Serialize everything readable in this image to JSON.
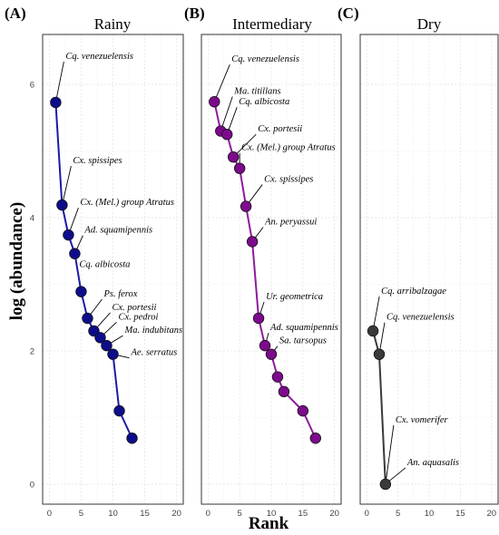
{
  "chart_data": [
    {
      "type": "line",
      "letter": "(A)",
      "title": "Rainy",
      "color": "#0d0d8c",
      "line_color": "#1a1aa6",
      "x": [
        1,
        2,
        3,
        4,
        5,
        6,
        7,
        8,
        9,
        10,
        11,
        13
      ],
      "y": [
        5.73,
        4.19,
        3.74,
        3.46,
        2.89,
        2.49,
        2.3,
        2.2,
        2.08,
        1.95,
        1.1,
        0.69
      ],
      "annotations": [
        {
          "text": "Cq. venezuelensis",
          "point": 0
        },
        {
          "text": "Cx. spissipes",
          "point": 1
        },
        {
          "text": "Cx. (Mel.) group Atratus",
          "point": 2
        },
        {
          "text": "Ad. squamipennis",
          "point": 3
        },
        {
          "text": "Cq. albicosta",
          "point": 4
        },
        {
          "text": "Ps. ferox",
          "point": 5
        },
        {
          "text": "Cx. portesii",
          "point": 6
        },
        {
          "text": "Cx. pedroi",
          "point": 7
        },
        {
          "text": "Ma. indubitans",
          "point": 8
        },
        {
          "text": "Ae. serratus",
          "point": 9
        }
      ]
    },
    {
      "type": "line",
      "letter": "(B)",
      "title": "Intermediary",
      "color": "#7d0a8c",
      "line_color": "#8e1a9e",
      "x": [
        1,
        2,
        3,
        4,
        5,
        6,
        7,
        8,
        9,
        10,
        11,
        12,
        15,
        17
      ],
      "y": [
        5.74,
        5.3,
        5.25,
        4.91,
        4.74,
        4.17,
        3.64,
        2.49,
        2.08,
        1.95,
        1.61,
        1.39,
        1.1,
        0.69
      ],
      "annotations": [
        {
          "text": "Cq. venezuelensis",
          "point": 0
        },
        {
          "text": "Ma. titillans",
          "point": 1
        },
        {
          "text": "Cq. albicosta",
          "point": 2
        },
        {
          "text": "Cx. portesii",
          "point": 3
        },
        {
          "text": "Cx. (Mel.) group Atratus",
          "point": 4
        },
        {
          "text": "Cx. spissipes",
          "point": 5
        },
        {
          "text": "An. peryassui",
          "point": 6
        },
        {
          "text": "Ur. geometrica",
          "point": 7
        },
        {
          "text": "Ad. squamipennis",
          "point": 8
        },
        {
          "text": "Sa. tarsopus",
          "point": 9
        }
      ]
    },
    {
      "type": "line",
      "letter": "(C)",
      "title": "Dry",
      "color": "#3a3a3a",
      "line_color": "#3a3a3a",
      "x": [
        1,
        2,
        3
      ],
      "y": [
        2.3,
        1.95,
        0.0
      ],
      "annotations": [
        {
          "text": "Cq. arribalzagae",
          "point": 0
        },
        {
          "text": "Cq. venezuelensis",
          "point": 1
        },
        {
          "text": "Cx. vomerifer",
          "point": 2
        },
        {
          "text": "An. aquasalis",
          "point": 2
        }
      ]
    }
  ],
  "axes": {
    "xlabel": "Rank",
    "ylabel": "log (abundance)",
    "xlim": [
      -1.05,
      21.05
    ],
    "ylim": [
      -0.3,
      6.75
    ],
    "x_ticks": [
      "0",
      "5",
      "10",
      "15",
      "20"
    ],
    "x_tick_values": [
      0,
      5,
      10,
      15,
      20
    ],
    "y_ticks": [
      "0",
      "2",
      "4",
      "6"
    ],
    "y_tick_values": [
      0,
      2,
      4,
      6
    ],
    "grid": true
  }
}
